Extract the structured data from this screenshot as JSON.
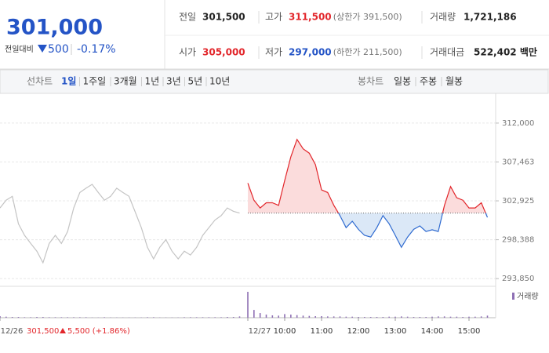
{
  "header": {
    "price": "301,000",
    "change_label": "전일대비",
    "change": "500",
    "change_pct": "-0.17%",
    "color": "#2454c6"
  },
  "summary": {
    "rows": [
      [
        {
          "label": "전일",
          "value": "301,500",
          "color": "#222"
        },
        {
          "label": "고가",
          "value": "311,500",
          "note": "(상한가 391,500)",
          "color": "#e2262b"
        },
        {
          "label": "거래량",
          "value": "1,721,186",
          "color": "#222"
        }
      ],
      [
        {
          "label": "시가",
          "value": "305,000",
          "color": "#e2262b"
        },
        {
          "label": "저가",
          "value": "297,000",
          "note": "(하한가 211,500)",
          "color": "#2454c6"
        },
        {
          "label": "거래대금",
          "value": "522,402 백만",
          "color": "#222"
        }
      ]
    ]
  },
  "tabs": {
    "line_label": "선차트",
    "line_periods": [
      "1일",
      "1주일",
      "3개월",
      "1년",
      "3년",
      "5년",
      "10년"
    ],
    "selected": 0,
    "candle_label": "봉차트",
    "candle_periods": [
      "일봉",
      "주봉",
      "월봉"
    ]
  },
  "chart_data": {
    "type": "line",
    "x": [
      "09:00",
      "09:10",
      "09:20",
      "09:30",
      "09:40",
      "09:50",
      "10:00",
      "10:10",
      "10:20",
      "10:30",
      "10:40",
      "10:50",
      "11:00",
      "11:10",
      "11:20",
      "11:30",
      "11:40",
      "11:50",
      "12:00",
      "12:10",
      "12:20",
      "12:30",
      "12:40",
      "12:50",
      "13:00",
      "13:10",
      "13:20",
      "13:30",
      "13:40",
      "13:50",
      "14:00",
      "14:10",
      "14:20",
      "14:30",
      "14:40",
      "14:50",
      "15:00",
      "15:10",
      "15:20",
      "15:30"
    ],
    "series": [
      {
        "name": "12/26",
        "color": "#c4c4c4",
        "values": [
          302100,
          303000,
          303450,
          300250,
          298900,
          297950,
          297050,
          295700,
          297950,
          298900,
          297950,
          299350,
          302100,
          303900,
          304400,
          304850,
          303900,
          303000,
          303450,
          304400,
          303900,
          303450,
          301650,
          299800,
          297500,
          296150,
          297500,
          298400,
          297050,
          296150,
          297050,
          296600,
          297500,
          298900,
          299800,
          300700,
          301200,
          302100,
          301700,
          301500
        ]
      },
      {
        "name": "12/27",
        "color": "#e2262b",
        "down_color": "#2e6ad0",
        "fill": "#fbdcdc",
        "down_fill": "#dbe8f7",
        "values": [
          305000,
          303000,
          302100,
          302700,
          302700,
          302400,
          305300,
          308050,
          310100,
          309000,
          308500,
          307150,
          304200,
          303900,
          302400,
          301200,
          299800,
          300550,
          299600,
          298900,
          298700,
          299800,
          301200,
          300250,
          298900,
          297500,
          298700,
          299600,
          300000,
          299350,
          299550,
          299350,
          302400,
          304600,
          303300,
          303000,
          302100,
          302100,
          302700,
          301000
        ]
      }
    ],
    "reference_line": 301500,
    "ylim": [
      292950,
      313550
    ],
    "yticks": [
      {
        "value": 312000,
        "label": "312,000"
      },
      {
        "value": 307463,
        "label": "307,463"
      },
      {
        "value": 302925,
        "label": "302,925"
      },
      {
        "value": 298388,
        "label": "298,388"
      },
      {
        "value": 293850,
        "label": "293,850"
      }
    ],
    "xticks": [
      "10:00",
      "11:00",
      "12:00",
      "13:00",
      "14:00",
      "15:00"
    ],
    "grid": true,
    "volume": {
      "name": "거래량",
      "color": "#8e6fb4",
      "ylim": [
        0,
        100
      ],
      "series": [
        [
          6,
          4,
          3,
          3,
          2,
          2,
          3,
          3,
          2,
          2,
          2,
          2,
          2,
          2,
          2,
          1,
          1,
          2,
          1,
          1,
          1,
          1,
          1,
          1,
          2,
          2,
          1,
          1,
          1,
          1,
          2,
          2,
          2,
          2,
          2,
          2,
          2,
          3,
          3,
          5
        ],
        [
          100,
          30,
          18,
          12,
          9,
          8,
          14,
          12,
          10,
          8,
          7,
          6,
          6,
          5,
          5,
          5,
          4,
          4,
          3,
          3,
          3,
          3,
          3,
          4,
          4,
          5,
          4,
          3,
          3,
          3,
          4,
          5,
          5,
          4,
          4,
          3,
          4,
          4,
          5,
          8
        ]
      ]
    }
  },
  "status": {
    "price": "301,500",
    "change": "5,500 (+1.86%)",
    "color": "#e2262b"
  }
}
